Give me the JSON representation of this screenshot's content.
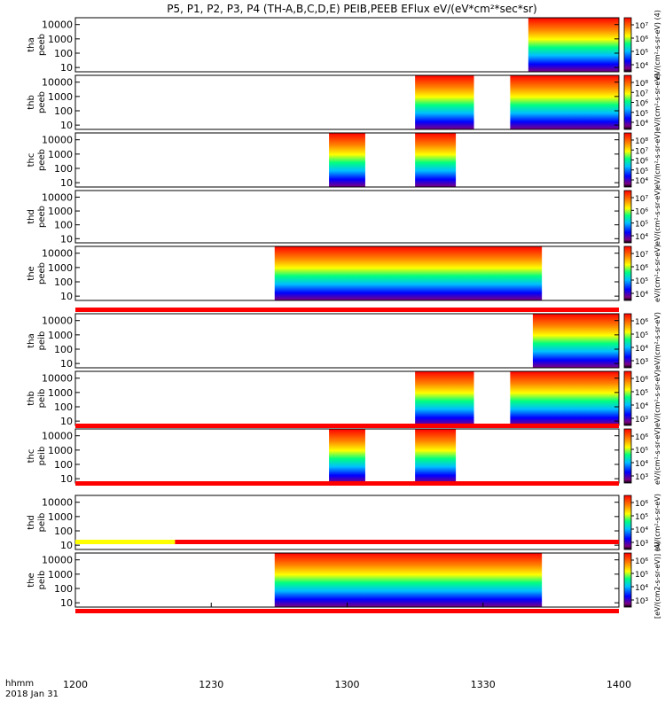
{
  "figure": {
    "title": "P5, P1, P2, P3, P4 (TH-A,B,C,D,E) PEIB,PEEB EFlux eV/(eV*cm²*sec*sr)",
    "time_label_1": "hhmm",
    "time_label_2": "2018 Jan 31",
    "xticks": [
      "1200",
      "1230",
      "1300",
      "1330",
      "1400"
    ]
  },
  "colors": {
    "spectrogram_scale": [
      "#800080",
      "#0000ff",
      "#00c0ff",
      "#00ff80",
      "#ffff00",
      "#ff8000",
      "#ff0000"
    ],
    "flag_bar_red": "#ff0000",
    "flag_bar_yellow": "#ffff00"
  },
  "chart_data": {
    "type": "heatmap",
    "x_range": [
      "12:00",
      "14:00"
    ],
    "x_unit": "hhmm",
    "y_scale": "log",
    "y_range": [
      5,
      30000
    ],
    "yticks": [
      "10",
      "100",
      "1000",
      "10000"
    ],
    "panels": [
      {
        "ylabel": [
          "tha",
          "peeb"
        ],
        "cbar_ticks": [
          "10⁴",
          "10⁵",
          "10⁶",
          "10⁷"
        ],
        "cbar_label": "eV/(cm²-s-sr-eV) (4)",
        "segments": [
          {
            "start": "13:40",
            "end": "14:00"
          }
        ]
      },
      {
        "ylabel": [
          "thb",
          "peeb"
        ],
        "cbar_ticks": [
          "10⁴",
          "10⁵",
          "10⁶",
          "10⁷",
          "10⁸"
        ],
        "cbar_label": "eV/(cm²-s-sr-eV)",
        "segments": [
          {
            "start": "13:15",
            "end": "13:28"
          },
          {
            "start": "13:36",
            "end": "14:00"
          }
        ]
      },
      {
        "ylabel": [
          "thc",
          "peeb"
        ],
        "cbar_ticks": [
          "10⁴",
          "10⁵",
          "10⁶",
          "10⁷",
          "10⁸"
        ],
        "cbar_label": "eV/(cm²-s-sr-eV)",
        "segments": [
          {
            "start": "12:56",
            "end": "13:04"
          },
          {
            "start": "13:15",
            "end": "13:24"
          }
        ]
      },
      {
        "ylabel": [
          "thd",
          "peeb"
        ],
        "cbar_ticks": [
          "10⁴",
          "10⁵",
          "10⁶",
          "10⁷"
        ],
        "cbar_label": "eV/(cm²-s-sr-eV)",
        "segments": []
      },
      {
        "ylabel": [
          "the",
          "peeb"
        ],
        "cbar_ticks": [
          "10⁴",
          "10⁵",
          "10⁶",
          "10⁷"
        ],
        "cbar_label": "eV/(cm²-s-sr-eV)",
        "segments": [
          {
            "start": "12:44",
            "end": "13:43"
          }
        ]
      },
      {
        "ylabel": [
          "tha",
          "peib"
        ],
        "cbar_ticks": [
          "10³",
          "10⁴",
          "10⁵",
          "10⁶"
        ],
        "cbar_label": "eV/(cm²-s-sr-eV)",
        "segments": [
          {
            "start": "13:41",
            "end": "14:00"
          }
        ]
      },
      {
        "ylabel": [
          "thb",
          "peib"
        ],
        "cbar_ticks": [
          "10³",
          "10⁴",
          "10⁵",
          "10⁶"
        ],
        "cbar_label": "eV/(cm²-s-sr-eV)",
        "segments": [
          {
            "start": "13:15",
            "end": "13:28"
          },
          {
            "start": "13:36",
            "end": "14:00"
          }
        ]
      },
      {
        "ylabel": [
          "thc",
          "peib"
        ],
        "cbar_ticks": [
          "10³",
          "10⁴",
          "10⁵",
          "10⁶"
        ],
        "cbar_label": "eV/(cm²-s-sr-eV)",
        "segments": [
          {
            "start": "12:56",
            "end": "13:04"
          },
          {
            "start": "13:15",
            "end": "13:24"
          }
        ]
      },
      {
        "ylabel": [
          "thd",
          "peib"
        ],
        "cbar_ticks": [
          "10³",
          "10⁴",
          "10⁵",
          "10⁶"
        ],
        "cbar_label": "eV/(cm²-s-sr-eV)",
        "segments": []
      },
      {
        "ylabel": [
          "the",
          "peib"
        ],
        "cbar_ticks": [
          "10³",
          "10⁴",
          "10⁵",
          "10⁶"
        ],
        "cbar_label": "[eV/(cm2-s-sr-eV)] (4)",
        "segments": [
          {
            "start": "12:44",
            "end": "13:43"
          }
        ]
      }
    ],
    "flag_bars": [
      {
        "after_panel": 5,
        "segments": [
          {
            "start": "12:00",
            "end": "14:00",
            "color": "red"
          }
        ]
      },
      {
        "after_panel": 6,
        "segments": [
          {
            "start": "12:00",
            "end": "14:00",
            "color": "red"
          }
        ]
      },
      {
        "after_panel": 7,
        "segments": [
          {
            "start": "12:00",
            "end": "14:00",
            "color": "red"
          }
        ]
      },
      {
        "after_panel": 8,
        "segments": [
          {
            "start": "12:00",
            "end": "12:22",
            "color": "yellow"
          },
          {
            "start": "12:22",
            "end": "14:00",
            "color": "red"
          }
        ]
      },
      {
        "after_panel": 9,
        "segments": [
          {
            "start": "12:00",
            "end": "14:00",
            "color": "red"
          }
        ]
      }
    ]
  }
}
